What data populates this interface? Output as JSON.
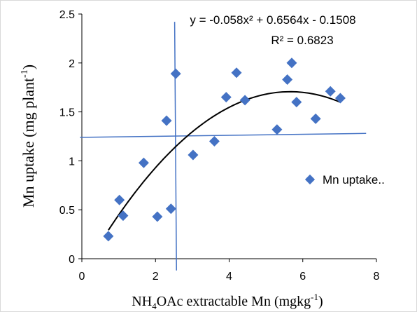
{
  "chart_data": {
    "type": "scatter",
    "title": "",
    "xlabel": {
      "main": "NH",
      "sub": "4",
      "rest": "OAc extractable Mn (mgkg",
      "sup": "-1",
      "end": ")"
    },
    "ylabel": {
      "main": "Mn uptake (mg plant",
      "sup": "-1",
      "end": ")"
    },
    "xlim": [
      0,
      8
    ],
    "ylim": [
      0,
      2.5
    ],
    "xticks": [
      0,
      2,
      4,
      6,
      8
    ],
    "yticks": [
      0,
      0.5,
      1,
      1.5,
      2,
      2.5
    ],
    "xtick_labels": [
      "0",
      "2",
      "4",
      "6",
      "8"
    ],
    "ytick_labels": [
      "0",
      "0.5",
      "1",
      "1.5",
      "2",
      "2.5"
    ],
    "grid": false,
    "legend_position": "right",
    "series": [
      {
        "name": "Mn uptake..",
        "color": "#4472C4",
        "marker": "diamond",
        "points": [
          {
            "x": 0.72,
            "y": 0.23
          },
          {
            "x": 1.02,
            "y": 0.6
          },
          {
            "x": 1.12,
            "y": 0.44
          },
          {
            "x": 1.68,
            "y": 0.98
          },
          {
            "x": 2.05,
            "y": 0.43
          },
          {
            "x": 2.3,
            "y": 1.41
          },
          {
            "x": 2.42,
            "y": 0.51
          },
          {
            "x": 2.55,
            "y": 1.89
          },
          {
            "x": 3.02,
            "y": 1.06
          },
          {
            "x": 3.6,
            "y": 1.2
          },
          {
            "x": 3.92,
            "y": 1.65
          },
          {
            "x": 4.2,
            "y": 1.9
          },
          {
            "x": 4.43,
            "y": 1.62
          },
          {
            "x": 5.3,
            "y": 1.32
          },
          {
            "x": 5.58,
            "y": 1.83
          },
          {
            "x": 5.7,
            "y": 2.0
          },
          {
            "x": 5.83,
            "y": 1.6
          },
          {
            "x": 6.35,
            "y": 1.43
          },
          {
            "x": 6.75,
            "y": 1.71
          },
          {
            "x": 7.02,
            "y": 1.64
          }
        ]
      }
    ],
    "trendline": {
      "type": "polynomial",
      "coefficients": {
        "a": -0.058,
        "b": 0.6564,
        "c": -0.1508
      },
      "x_range": [
        0.72,
        7.02
      ],
      "color": "#000000"
    },
    "equation": "y = -0.058x² + 0.6564x - 0.1508",
    "r_squared": "R² = 0.6823",
    "reference_lines": {
      "color": "#4472C4",
      "vertical": {
        "x1": 2.52,
        "x2": 2.57,
        "y1": 2.42,
        "y2": -0.12
      },
      "horizontal": {
        "x1": -0.05,
        "x2": 7.72,
        "y1": 1.24,
        "y2": 1.28
      }
    }
  }
}
